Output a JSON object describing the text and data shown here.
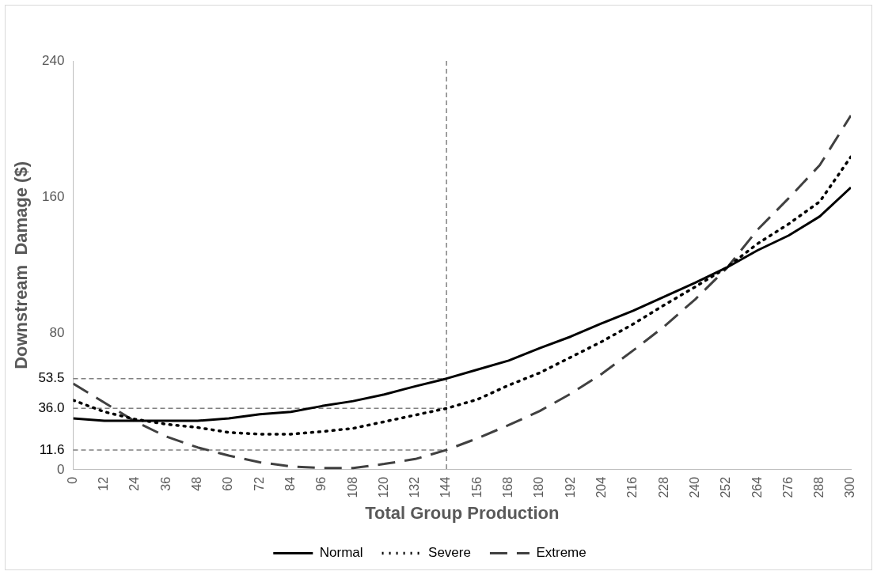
{
  "chart_data": {
    "type": "line",
    "xlabel": "Total Group Production",
    "ylabel": "Downstream  Damage ($)",
    "x": [
      0,
      12,
      24,
      36,
      48,
      60,
      72,
      84,
      96,
      108,
      120,
      132,
      144,
      156,
      168,
      180,
      192,
      204,
      216,
      228,
      240,
      252,
      264,
      276,
      288,
      300
    ],
    "xlim": [
      0,
      300
    ],
    "xticks": [
      0,
      12,
      24,
      36,
      48,
      60,
      72,
      84,
      96,
      108,
      120,
      132,
      144,
      156,
      168,
      180,
      192,
      204,
      216,
      228,
      240,
      252,
      264,
      276,
      288,
      300
    ],
    "ylim": [
      0,
      240
    ],
    "yticks": [
      0,
      {
        "value": 11.6,
        "label": "11.6"
      },
      {
        "value": 36,
        "label": "36.0"
      },
      {
        "value": 53.5,
        "label": "53.5"
      },
      80,
      160,
      240
    ],
    "series": [
      {
        "name": "Normal",
        "color": "#000000",
        "line_style": "solid",
        "values": [
          30.1,
          28.7,
          28.7,
          28.7,
          28.7,
          30.1,
          32.6,
          34,
          37.4,
          40.3,
          44.2,
          49,
          53.5,
          58.8,
          64.1,
          71.4,
          78.2,
          86,
          93.3,
          101.6,
          109.8,
          118.6,
          128.8,
          137.5,
          148.7,
          165.7
        ]
      },
      {
        "name": "Severe",
        "color": "#000000",
        "line_style": "dotted",
        "values": [
          40.8,
          34,
          29.6,
          26.7,
          24.8,
          21.9,
          20.9,
          20.9,
          22.4,
          24.3,
          28.2,
          32.1,
          36,
          41.3,
          49.6,
          56.9,
          66.1,
          75.3,
          85.5,
          96.7,
          107.4,
          118.6,
          132.7,
          144.3,
          157.4,
          183.7
        ]
      },
      {
        "name": "Extreme",
        "color": "#404040",
        "line_style": "dashed",
        "values": [
          50.5,
          39.4,
          28.2,
          19.4,
          13.1,
          8.3,
          4.4,
          1.9,
          1,
          1,
          3.4,
          6.3,
          11.6,
          18.5,
          26.2,
          34.5,
          44.7,
          56.4,
          70,
          84.1,
          100.1,
          118.1,
          140.9,
          159.4,
          178.8,
          208
        ]
      }
    ],
    "ref_lines": [
      {
        "axis": "x",
        "value": 144,
        "color": "#808080",
        "line_style": "dashed"
      },
      {
        "axis": "y",
        "value": 53.5,
        "color": "#808080",
        "line_style": "dashed"
      },
      {
        "axis": "y",
        "value": 36,
        "color": "#808080",
        "line_style": "dashed"
      },
      {
        "axis": "y",
        "value": 11.6,
        "color": "#808080",
        "line_style": "dashed"
      }
    ],
    "marker": "none",
    "grid": false,
    "legend": "bottom"
  }
}
